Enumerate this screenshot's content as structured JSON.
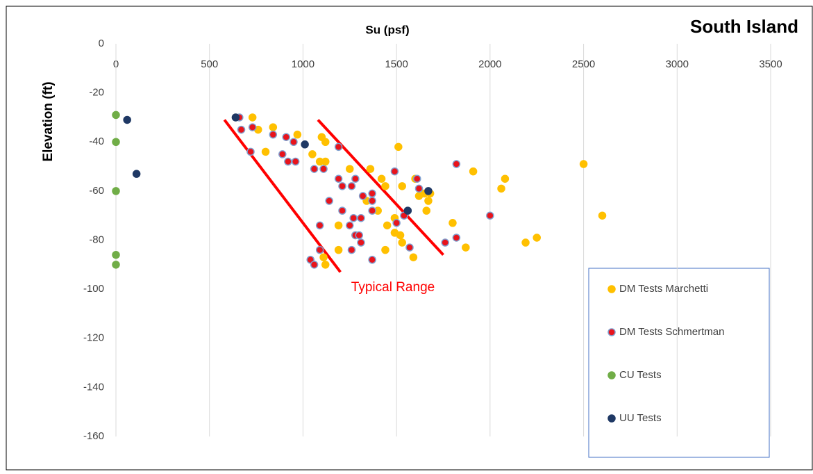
{
  "chart_data": {
    "type": "scatter",
    "title": "South Island",
    "x_label": "Su (psf)",
    "y_label": "Elevation (ft)",
    "xlim": [
      0,
      3500
    ],
    "xticks": [
      0,
      500,
      1000,
      1500,
      2000,
      2500,
      3000,
      3500
    ],
    "ylim": [
      -160,
      0
    ],
    "yticks": [
      0,
      -20,
      -40,
      -60,
      -80,
      -100,
      -120,
      -140,
      -160
    ],
    "grid": "x",
    "legend": "lower right",
    "series": [
      {
        "name": "DM Tests Marchetti",
        "color": "#ffc000",
        "edgecolor": "#ffc000",
        "x": [
          730,
          760,
          840,
          800,
          970,
          1100,
          1120,
          1050,
          1090,
          1120,
          1250,
          1510,
          1360,
          1440,
          1420,
          1530,
          1600,
          1620,
          1670,
          1680,
          1340,
          1400,
          1660,
          1190,
          1280,
          1450,
          1490,
          1520,
          1490,
          1530,
          1440,
          1190,
          1110,
          1120,
          1590,
          1800,
          1870,
          1910,
          2060,
          2080,
          2500,
          2600,
          2190,
          2250,
          1650
        ],
        "y": [
          -30,
          -35,
          -34,
          -44,
          -37,
          -38,
          -40,
          -45,
          -48,
          -48,
          -51,
          -42,
          -51,
          -58,
          -55,
          -58,
          -55,
          -62,
          -64,
          -61,
          -64,
          -68,
          -68,
          -74,
          -78,
          -74,
          -71,
          -78,
          -77,
          -81,
          -84,
          -84,
          -87,
          -90,
          -87,
          -73,
          -83,
          -52,
          -59,
          -55,
          -49,
          -70,
          -81,
          -79,
          -61
        ]
      },
      {
        "name": "DM Tests Schmertman",
        "color": "#e8141c",
        "edgecolor": "#7f9fcf",
        "x": [
          660,
          670,
          730,
          720,
          840,
          910,
          950,
          890,
          920,
          960,
          1060,
          1110,
          1190,
          1190,
          1210,
          1260,
          1280,
          1320,
          1370,
          1370,
          1370,
          1140,
          1210,
          1270,
          1310,
          1250,
          1090,
          1280,
          1300,
          1310,
          1260,
          1090,
          1040,
          1060,
          1370,
          1490,
          1610,
          1620,
          1500,
          1540,
          1570,
          1760,
          1820,
          1820,
          2000
        ],
        "y": [
          -30,
          -35,
          -34,
          -44,
          -37,
          -38,
          -40,
          -45,
          -48,
          -48,
          -51,
          -51,
          -42,
          -55,
          -58,
          -58,
          -55,
          -62,
          -61,
          -64,
          -68,
          -64,
          -68,
          -71,
          -71,
          -74,
          -74,
          -78,
          -78,
          -81,
          -84,
          -84,
          -88,
          -90,
          -88,
          -52,
          -55,
          -59,
          -73,
          -70,
          -83,
          -81,
          -79,
          -49,
          -70
        ]
      },
      {
        "name": "CU Tests",
        "color": "#70ad47",
        "edgecolor": "#70ad47",
        "x": [
          0,
          0,
          0,
          0,
          0
        ],
        "y": [
          -29,
          -40,
          -60,
          -86,
          -90
        ]
      },
      {
        "name": "UU Tests",
        "color": "#1f3864",
        "edgecolor": "#1f3864",
        "x": [
          640,
          60,
          1010,
          110,
          1560,
          1670
        ],
        "y": [
          -30,
          -31,
          -41,
          -53,
          -68,
          -60
        ]
      }
    ],
    "typical_range": {
      "label": "Typical Range",
      "color": "#ff0000",
      "lines": [
        {
          "x": [
            580,
            1200
          ],
          "y": [
            -31,
            -93
          ]
        },
        {
          "x": [
            1080,
            1750
          ],
          "y": [
            -31,
            -86
          ]
        }
      ]
    }
  }
}
